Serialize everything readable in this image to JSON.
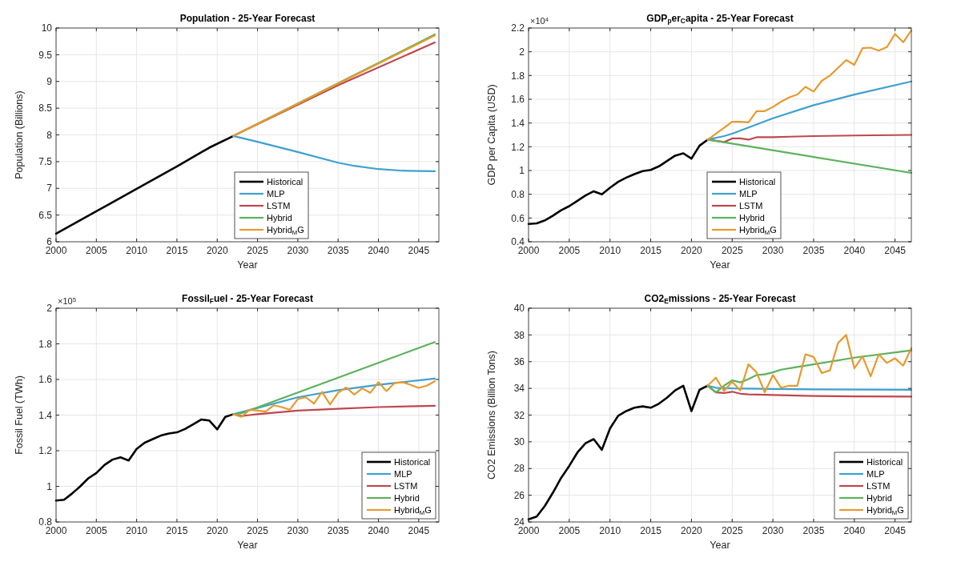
{
  "chart_data": [
    {
      "type": "line",
      "title": "Population - 25-Year Forecast",
      "xlabel": "Year",
      "ylabel": "Population (Billions)",
      "xlim": [
        2000,
        2047.5
      ],
      "xticks": [
        2000,
        2005,
        2010,
        2015,
        2020,
        2025,
        2030,
        2035,
        2040,
        2045
      ],
      "ylim": [
        6,
        10
      ],
      "yticks": [
        6,
        6.5,
        7,
        7.5,
        8,
        8.5,
        9,
        9.5,
        10
      ],
      "grid": true,
      "legend": "bottom",
      "line_style": "solid",
      "series": [
        {
          "name": "Historical",
          "color": "#000000",
          "x": [
            2000,
            2005,
            2010,
            2015,
            2019,
            2022
          ],
          "values": [
            6.15,
            6.57,
            6.99,
            7.41,
            7.76,
            7.98
          ]
        },
        {
          "name": "MLP",
          "color": "#3fa0d0",
          "x": [
            2022,
            2025,
            2030,
            2035,
            2037,
            2040,
            2043,
            2047
          ],
          "values": [
            7.98,
            7.87,
            7.68,
            7.48,
            7.42,
            7.36,
            7.33,
            7.32
          ]
        },
        {
          "name": "LSTM",
          "color": "#c0464f",
          "x": [
            2022,
            2035,
            2047
          ],
          "values": [
            7.98,
            8.93,
            9.73
          ]
        },
        {
          "name": "Hybrid",
          "color": "#5cb25c",
          "x": [
            2022,
            2047
          ],
          "values": [
            7.98,
            9.88
          ]
        },
        {
          "name": "Hybrid$_{M}$G",
          "color": "#e69a2e",
          "x": [
            2022,
            2047
          ],
          "values": [
            7.98,
            9.86
          ]
        }
      ]
    },
    {
      "type": "line",
      "title": "GDP$_{p}$er$_{C}$apita - 25-Year Forecast",
      "xlabel": "Year",
      "ylabel": "GDP per Capita (USD)",
      "annotations": [
        "×10$^{4}$"
      ],
      "xlim": [
        2000,
        2047
      ],
      "xticks": [
        2000,
        2005,
        2010,
        2015,
        2020,
        2025,
        2030,
        2035,
        2040,
        2045
      ],
      "ylim": [
        0.4,
        2.2
      ],
      "yticks": [
        0.4,
        0.6,
        0.8,
        1,
        1.2,
        1.4,
        1.6,
        1.8,
        2,
        2.2
      ],
      "grid": true,
      "legend": "bottom",
      "line_style": "solid",
      "series": [
        {
          "name": "Historical",
          "color": "#000000",
          "x": [
            2000,
            2001,
            2002,
            2003,
            2004,
            2005,
            2006,
            2007,
            2008,
            2009,
            2010,
            2011,
            2012,
            2013,
            2014,
            2015,
            2016,
            2017,
            2018,
            2019,
            2020,
            2021,
            2022
          ],
          "values": [
            0.55,
            0.555,
            0.58,
            0.62,
            0.665,
            0.7,
            0.745,
            0.79,
            0.825,
            0.8,
            0.855,
            0.905,
            0.94,
            0.97,
            0.995,
            1.005,
            1.035,
            1.08,
            1.125,
            1.145,
            1.1,
            1.21,
            1.26
          ]
        },
        {
          "name": "MLP",
          "color": "#3fa0d0",
          "x": [
            2022,
            2024,
            2025,
            2030,
            2035,
            2040,
            2047
          ],
          "values": [
            1.26,
            1.29,
            1.31,
            1.44,
            1.55,
            1.64,
            1.75
          ]
        },
        {
          "name": "LSTM",
          "color": "#c0464f",
          "x": [
            2022,
            2023,
            2024,
            2025,
            2026,
            2027,
            2028,
            2030,
            2032,
            2035,
            2040,
            2047
          ],
          "values": [
            1.26,
            1.25,
            1.24,
            1.27,
            1.27,
            1.26,
            1.28,
            1.28,
            1.285,
            1.29,
            1.295,
            1.3
          ]
        },
        {
          "name": "Hybrid",
          "color": "#5cb25c",
          "x": [
            2022,
            2047
          ],
          "values": [
            1.26,
            0.98
          ]
        },
        {
          "name": "Hybrid$_{M}$G",
          "color": "#e69a2e",
          "x": [
            2022,
            2023,
            2024,
            2025,
            2026,
            2027,
            2028,
            2029,
            2030,
            2031,
            2032,
            2033,
            2034,
            2035,
            2036,
            2037,
            2038,
            2039,
            2040,
            2041,
            2042,
            2043,
            2044,
            2045,
            2046,
            2047
          ],
          "values": [
            1.26,
            1.31,
            1.36,
            1.41,
            1.41,
            1.405,
            1.5,
            1.5,
            1.535,
            1.58,
            1.615,
            1.64,
            1.705,
            1.665,
            1.755,
            1.8,
            1.865,
            1.93,
            1.89,
            2.03,
            2.035,
            2.01,
            2.04,
            2.15,
            2.08,
            2.18
          ]
        }
      ]
    },
    {
      "type": "line",
      "title": "Fossil$_{F}$uel - 25-Year Forecast",
      "xlabel": "Year",
      "ylabel": "Fossil Fuel (TWh)",
      "annotations": [
        "×10$^{5}$"
      ],
      "xlim": [
        2000,
        2047.5
      ],
      "xticks": [
        2000,
        2005,
        2010,
        2015,
        2020,
        2025,
        2030,
        2035,
        2040,
        2045
      ],
      "ylim": [
        0.8,
        2
      ],
      "yticks": [
        0.8,
        1,
        1.2,
        1.4,
        1.6,
        1.8,
        2
      ],
      "grid": true,
      "legend": "bottom right",
      "line_style": "solid",
      "series": [
        {
          "name": "Historical",
          "color": "#000000",
          "x": [
            2000,
            2001,
            2002,
            2003,
            2004,
            2005,
            2006,
            2007,
            2008,
            2009,
            2010,
            2011,
            2012,
            2013,
            2014,
            2015,
            2016,
            2017,
            2018,
            2019,
            2020,
            2021,
            2022
          ],
          "values": [
            0.92,
            0.925,
            0.96,
            1,
            1.045,
            1.075,
            1.12,
            1.15,
            1.163,
            1.145,
            1.21,
            1.245,
            1.265,
            1.285,
            1.297,
            1.303,
            1.322,
            1.348,
            1.375,
            1.37,
            1.32,
            1.39,
            1.405
          ]
        },
        {
          "name": "MLP",
          "color": "#3fa0d0",
          "x": [
            2022,
            2025,
            2030,
            2035,
            2040,
            2047
          ],
          "values": [
            1.405,
            1.44,
            1.5,
            1.54,
            1.57,
            1.605
          ]
        },
        {
          "name": "LSTM",
          "color": "#c0464f",
          "x": [
            2022,
            2023,
            2024,
            2025,
            2030,
            2035,
            2040,
            2047
          ],
          "values": [
            1.405,
            1.395,
            1.4,
            1.405,
            1.425,
            1.435,
            1.445,
            1.452
          ]
        },
        {
          "name": "Hybrid",
          "color": "#5cb25c",
          "x": [
            2022,
            2023,
            2047
          ],
          "values": [
            1.405,
            1.41,
            1.81
          ]
        },
        {
          "name": "Hybrid$_{M}$G",
          "color": "#e69a2e",
          "x": [
            2022,
            2023,
            2024,
            2025,
            2026,
            2027,
            2028,
            2029,
            2030,
            2031,
            2032,
            2033,
            2034,
            2035,
            2036,
            2037,
            2038,
            2039,
            2040,
            2041,
            2042,
            2043,
            2044,
            2045,
            2046,
            2047
          ],
          "values": [
            1.405,
            1.39,
            1.43,
            1.425,
            1.42,
            1.455,
            1.445,
            1.43,
            1.49,
            1.5,
            1.465,
            1.53,
            1.46,
            1.525,
            1.555,
            1.515,
            1.55,
            1.525,
            1.585,
            1.535,
            1.58,
            1.585,
            1.57,
            1.553,
            1.565,
            1.59
          ]
        }
      ]
    },
    {
      "type": "line",
      "title": "CO2$_{E}$missions - 25-Year Forecast",
      "xlabel": "Year",
      "ylabel": "CO2 Emissions (Billion Tons)",
      "xlim": [
        2000,
        2047
      ],
      "xticks": [
        2000,
        2005,
        2010,
        2015,
        2020,
        2025,
        2030,
        2035,
        2040,
        2045
      ],
      "ylim": [
        24,
        40
      ],
      "yticks": [
        24,
        26,
        28,
        30,
        32,
        34,
        36,
        38,
        40
      ],
      "grid": true,
      "legend": "bottom right",
      "line_style": "solid",
      "series": [
        {
          "name": "Historical",
          "color": "#000000",
          "x": [
            2000,
            2001,
            2002,
            2003,
            2004,
            2005,
            2006,
            2007,
            2008,
            2009,
            2010,
            2011,
            2012,
            2013,
            2014,
            2015,
            2016,
            2017,
            2018,
            2019,
            2020,
            2021,
            2022
          ],
          "values": [
            24.2,
            24.4,
            25.2,
            26.2,
            27.3,
            28.2,
            29.2,
            29.9,
            30.2,
            29.4,
            31,
            31.95,
            32.3,
            32.55,
            32.65,
            32.55,
            32.85,
            33.3,
            33.85,
            34.2,
            32.3,
            33.9,
            34.2
          ]
        },
        {
          "name": "MLP",
          "color": "#3fa0d0",
          "x": [
            2022,
            2023,
            2025,
            2030,
            2035,
            2047
          ],
          "values": [
            34.2,
            34.05,
            34,
            33.95,
            33.92,
            33.9
          ]
        },
        {
          "name": "LSTM",
          "color": "#c0464f",
          "x": [
            2022,
            2023,
            2024,
            2025,
            2026,
            2027,
            2030,
            2035,
            2040,
            2047
          ],
          "values": [
            34.2,
            33.7,
            33.65,
            33.75,
            33.6,
            33.55,
            33.5,
            33.43,
            33.4,
            33.38
          ]
        },
        {
          "name": "Hybrid",
          "color": "#5cb25c",
          "x": [
            2022,
            2023,
            2024,
            2025,
            2026,
            2027,
            2028,
            2029,
            2030,
            2031,
            2033,
            2035,
            2040,
            2047
          ],
          "values": [
            34.2,
            33.7,
            34.2,
            34.6,
            34.45,
            34.7,
            35,
            35.05,
            35.2,
            35.4,
            35.6,
            35.8,
            36.3,
            36.85
          ]
        },
        {
          "name": "Hybrid$_{M}$G",
          "color": "#e69a2e",
          "x": [
            2022,
            2023,
            2024,
            2025,
            2026,
            2027,
            2028,
            2029,
            2030,
            2031,
            2032,
            2033,
            2034,
            2035,
            2036,
            2037,
            2038,
            2039,
            2040,
            2041,
            2042,
            2043,
            2044,
            2045,
            2046,
            2047
          ],
          "values": [
            34.2,
            34.8,
            33.8,
            34.5,
            33.85,
            35.8,
            35.2,
            33.7,
            35,
            34.05,
            34.2,
            34.2,
            36.55,
            36.35,
            35.15,
            35.35,
            37.4,
            38,
            35.5,
            36.4,
            34.9,
            36.55,
            35.9,
            36.25,
            35.7,
            37
          ]
        }
      ]
    }
  ]
}
